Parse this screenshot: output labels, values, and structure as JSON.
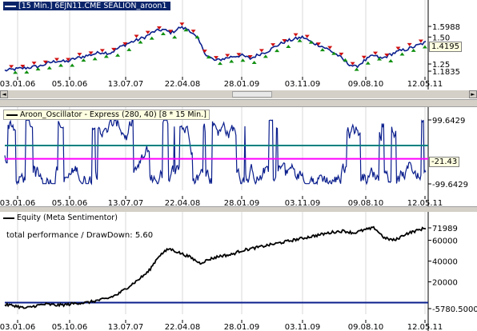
{
  "chart_data": [
    {
      "type": "line",
      "title": "[15 Min.] 6EJN11.CME SEALION_aroon1",
      "x_ticks": [
        "03.01.06",
        "05.10.06",
        "13.07.07",
        "22.04.08",
        "28.01.09",
        "03.11.09",
        "09.08.10",
        "12.05.11"
      ],
      "y_ticks": [
        "1.5988",
        "1.50",
        "1.25",
        "1.1835"
      ],
      "last_value": "1.4195",
      "ylim": [
        1.1835,
        1.5988
      ],
      "series": [
        {
          "color": "#0a1e8c",
          "values": [
            1.19,
            1.2,
            1.21,
            1.22,
            1.23,
            1.26,
            1.28,
            1.27,
            1.3,
            1.32,
            1.34,
            1.36,
            1.35,
            1.4,
            1.44,
            1.47,
            1.5,
            1.55,
            1.57,
            1.54,
            1.59,
            1.57,
            1.48,
            1.33,
            1.28,
            1.3,
            1.32,
            1.33,
            1.3,
            1.34,
            1.37,
            1.42,
            1.46,
            1.48,
            1.5,
            1.45,
            1.42,
            1.38,
            1.33,
            1.26,
            1.22,
            1.28,
            1.33,
            1.3,
            1.34,
            1.37,
            1.39,
            1.42,
            1.45
          ]
        }
      ]
    },
    {
      "type": "line",
      "title": "Aroon_Oscillator - Express  (280, 40) [8 * 15 Min.]",
      "x_ticks": [
        "03.01.06",
        "05.10.06",
        "13.07.07",
        "22.04.08",
        "28.01.09",
        "03.11.09",
        "09.08.10",
        "12.05.11"
      ],
      "y_ticks": [
        "99.6429",
        "-99.6429"
      ],
      "last_value": "-21.43",
      "ylim": [
        -99.6429,
        99.6429
      ],
      "threshold_upper": 20,
      "threshold_lower": -21.43,
      "series": [
        {
          "color": "#0a1e8c"
        }
      ]
    },
    {
      "type": "line",
      "title": "Equity (Meta Sentimentor)",
      "annotation": "total performance / DrawDown: 5.60",
      "x_ticks": [
        "03.01.06",
        "05.10.06",
        "13.07.07",
        "22.04.08",
        "28.01.09",
        "03.11.09",
        "09.08.10",
        "12.05.11"
      ],
      "y_ticks": [
        "71989",
        "60000",
        "40000",
        "20000",
        "-5780.5000"
      ],
      "ylim": [
        -5780.5,
        71989
      ],
      "zero_line": 0,
      "series": [
        {
          "color": "#000000",
          "values": [
            -2000,
            -3000,
            -5500,
            -3000,
            -1500,
            -2500,
            -2000,
            -500,
            0,
            2000,
            4000,
            8000,
            15000,
            22000,
            30000,
            45000,
            52000,
            48000,
            44000,
            38000,
            42000,
            45000,
            46000,
            50000,
            52000,
            54000,
            56000,
            58000,
            60000,
            62000,
            64000,
            66000,
            68000,
            69000,
            67000,
            70000,
            71989,
            62000,
            60000,
            66000,
            69000,
            71989
          ]
        }
      ]
    }
  ],
  "scrollbar": {
    "left_arrow": "◄",
    "right_arrow": "►"
  }
}
